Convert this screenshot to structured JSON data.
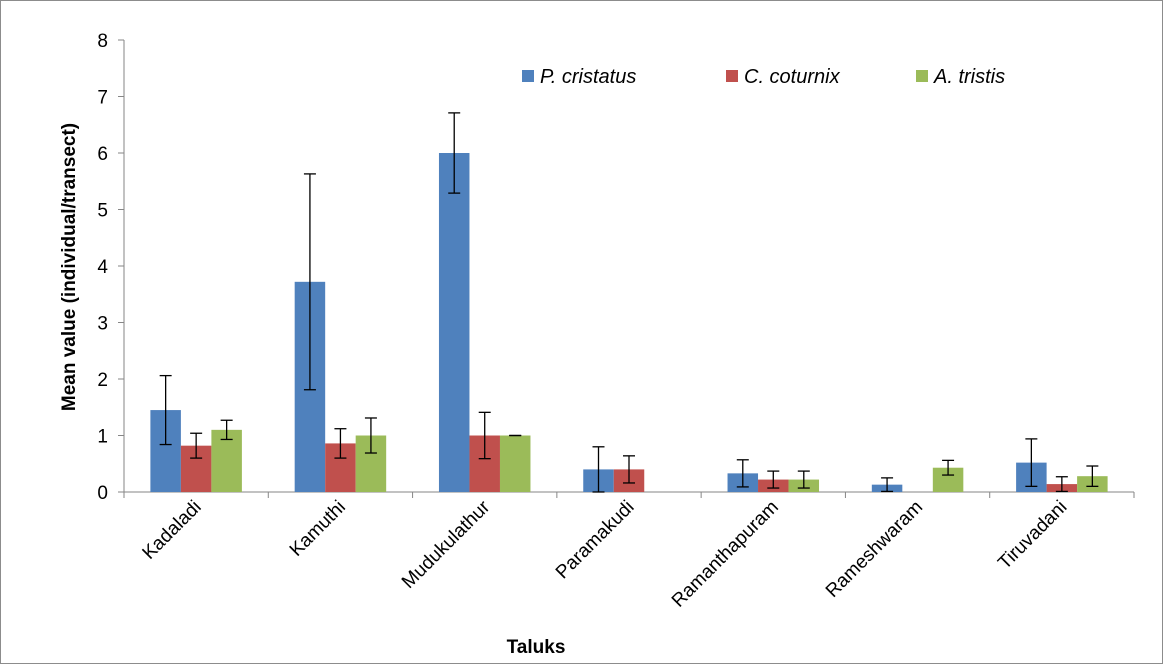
{
  "chart_data": {
    "type": "bar",
    "title": "",
    "xlabel": "Taluks",
    "ylabel": "Mean value (individual/transect)",
    "ylim": [
      0,
      8
    ],
    "yticks": [
      0,
      1,
      2,
      3,
      4,
      5,
      6,
      7,
      8
    ],
    "grid": false,
    "legend_position": "top-right",
    "categories": [
      "Kadaladi",
      "Kamuthi",
      "Mudukulathur",
      "Paramakudi",
      "Ramanthapuram",
      "Rameshwaram",
      "Tiruvadani"
    ],
    "series": [
      {
        "name": "P. cristatus",
        "color": "#4f81bd",
        "values": [
          1.45,
          3.72,
          6.0,
          0.4,
          0.33,
          0.13,
          0.52
        ],
        "errors": [
          0.61,
          1.91,
          0.71,
          0.4,
          0.24,
          0.12,
          0.42
        ]
      },
      {
        "name": "C. coturnix",
        "color": "#c0504d",
        "values": [
          0.82,
          0.86,
          1.0,
          0.4,
          0.22,
          0.0,
          0.14
        ],
        "errors": [
          0.22,
          0.26,
          0.41,
          0.24,
          0.15,
          0.0,
          0.13
        ]
      },
      {
        "name": "A. tristis",
        "color": "#9bbb59",
        "values": [
          1.1,
          1.0,
          1.0,
          0.0,
          0.22,
          0.43,
          0.28
        ],
        "errors": [
          0.17,
          0.31,
          0.0,
          0.0,
          0.15,
          0.13,
          0.18
        ]
      }
    ]
  }
}
